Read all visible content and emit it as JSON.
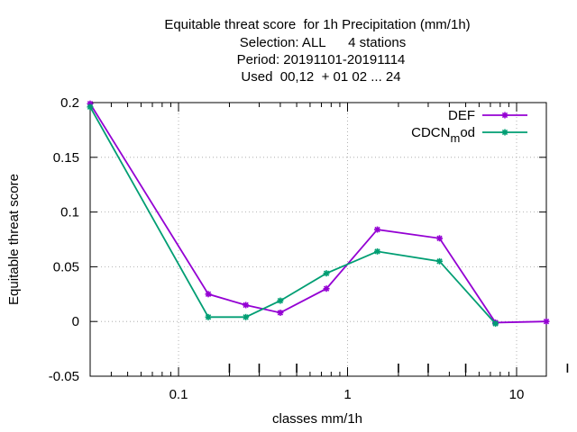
{
  "chart_data": {
    "type": "line",
    "title_lines": [
      "Equitable threat score  for 1h Precipitation (mm/1h)",
      "Selection: ALL      4 stations",
      "Period: 20191101-20191114",
      "Used  00,12  + 01 02 ... 24"
    ],
    "xlabel": "classes mm/1h",
    "ylabel": "Equitable threat score",
    "x_scale": "log",
    "xlim": [
      0.03,
      15
    ],
    "ylim": [
      -0.05,
      0.2
    ],
    "grid": true,
    "legend_position": "top-right",
    "x_ticks": [
      {
        "value": 0.1,
        "label": "0.1"
      },
      {
        "value": 1,
        "label": "1"
      },
      {
        "value": 10,
        "label": "10"
      }
    ],
    "y_ticks": [
      {
        "value": -0.05,
        "label": "-0.05"
      },
      {
        "value": 0,
        "label": "0"
      },
      {
        "value": 0.05,
        "label": "0.05"
      },
      {
        "value": 0.1,
        "label": "0.1"
      },
      {
        "value": 0.15,
        "label": "0.15"
      },
      {
        "value": 0.2,
        "label": "0.2"
      }
    ],
    "x": [
      0.03,
      0.15,
      0.25,
      0.4,
      0.75,
      1.5,
      3.5,
      7.5,
      15
    ],
    "series": [
      {
        "name": "DEF",
        "color": "#9400d3",
        "values": [
          0.199,
          0.025,
          0.015,
          0.008,
          0.03,
          0.084,
          0.076,
          -0.001,
          0.0
        ]
      },
      {
        "name": "CDCN_mod",
        "legend_main": "CDCN",
        "legend_sub": "m",
        "legend_tail": "od",
        "color": "#009e73",
        "values": [
          0.196,
          0.004,
          0.004,
          0.019,
          0.044,
          0.064,
          0.055,
          -0.002,
          null
        ]
      }
    ]
  }
}
